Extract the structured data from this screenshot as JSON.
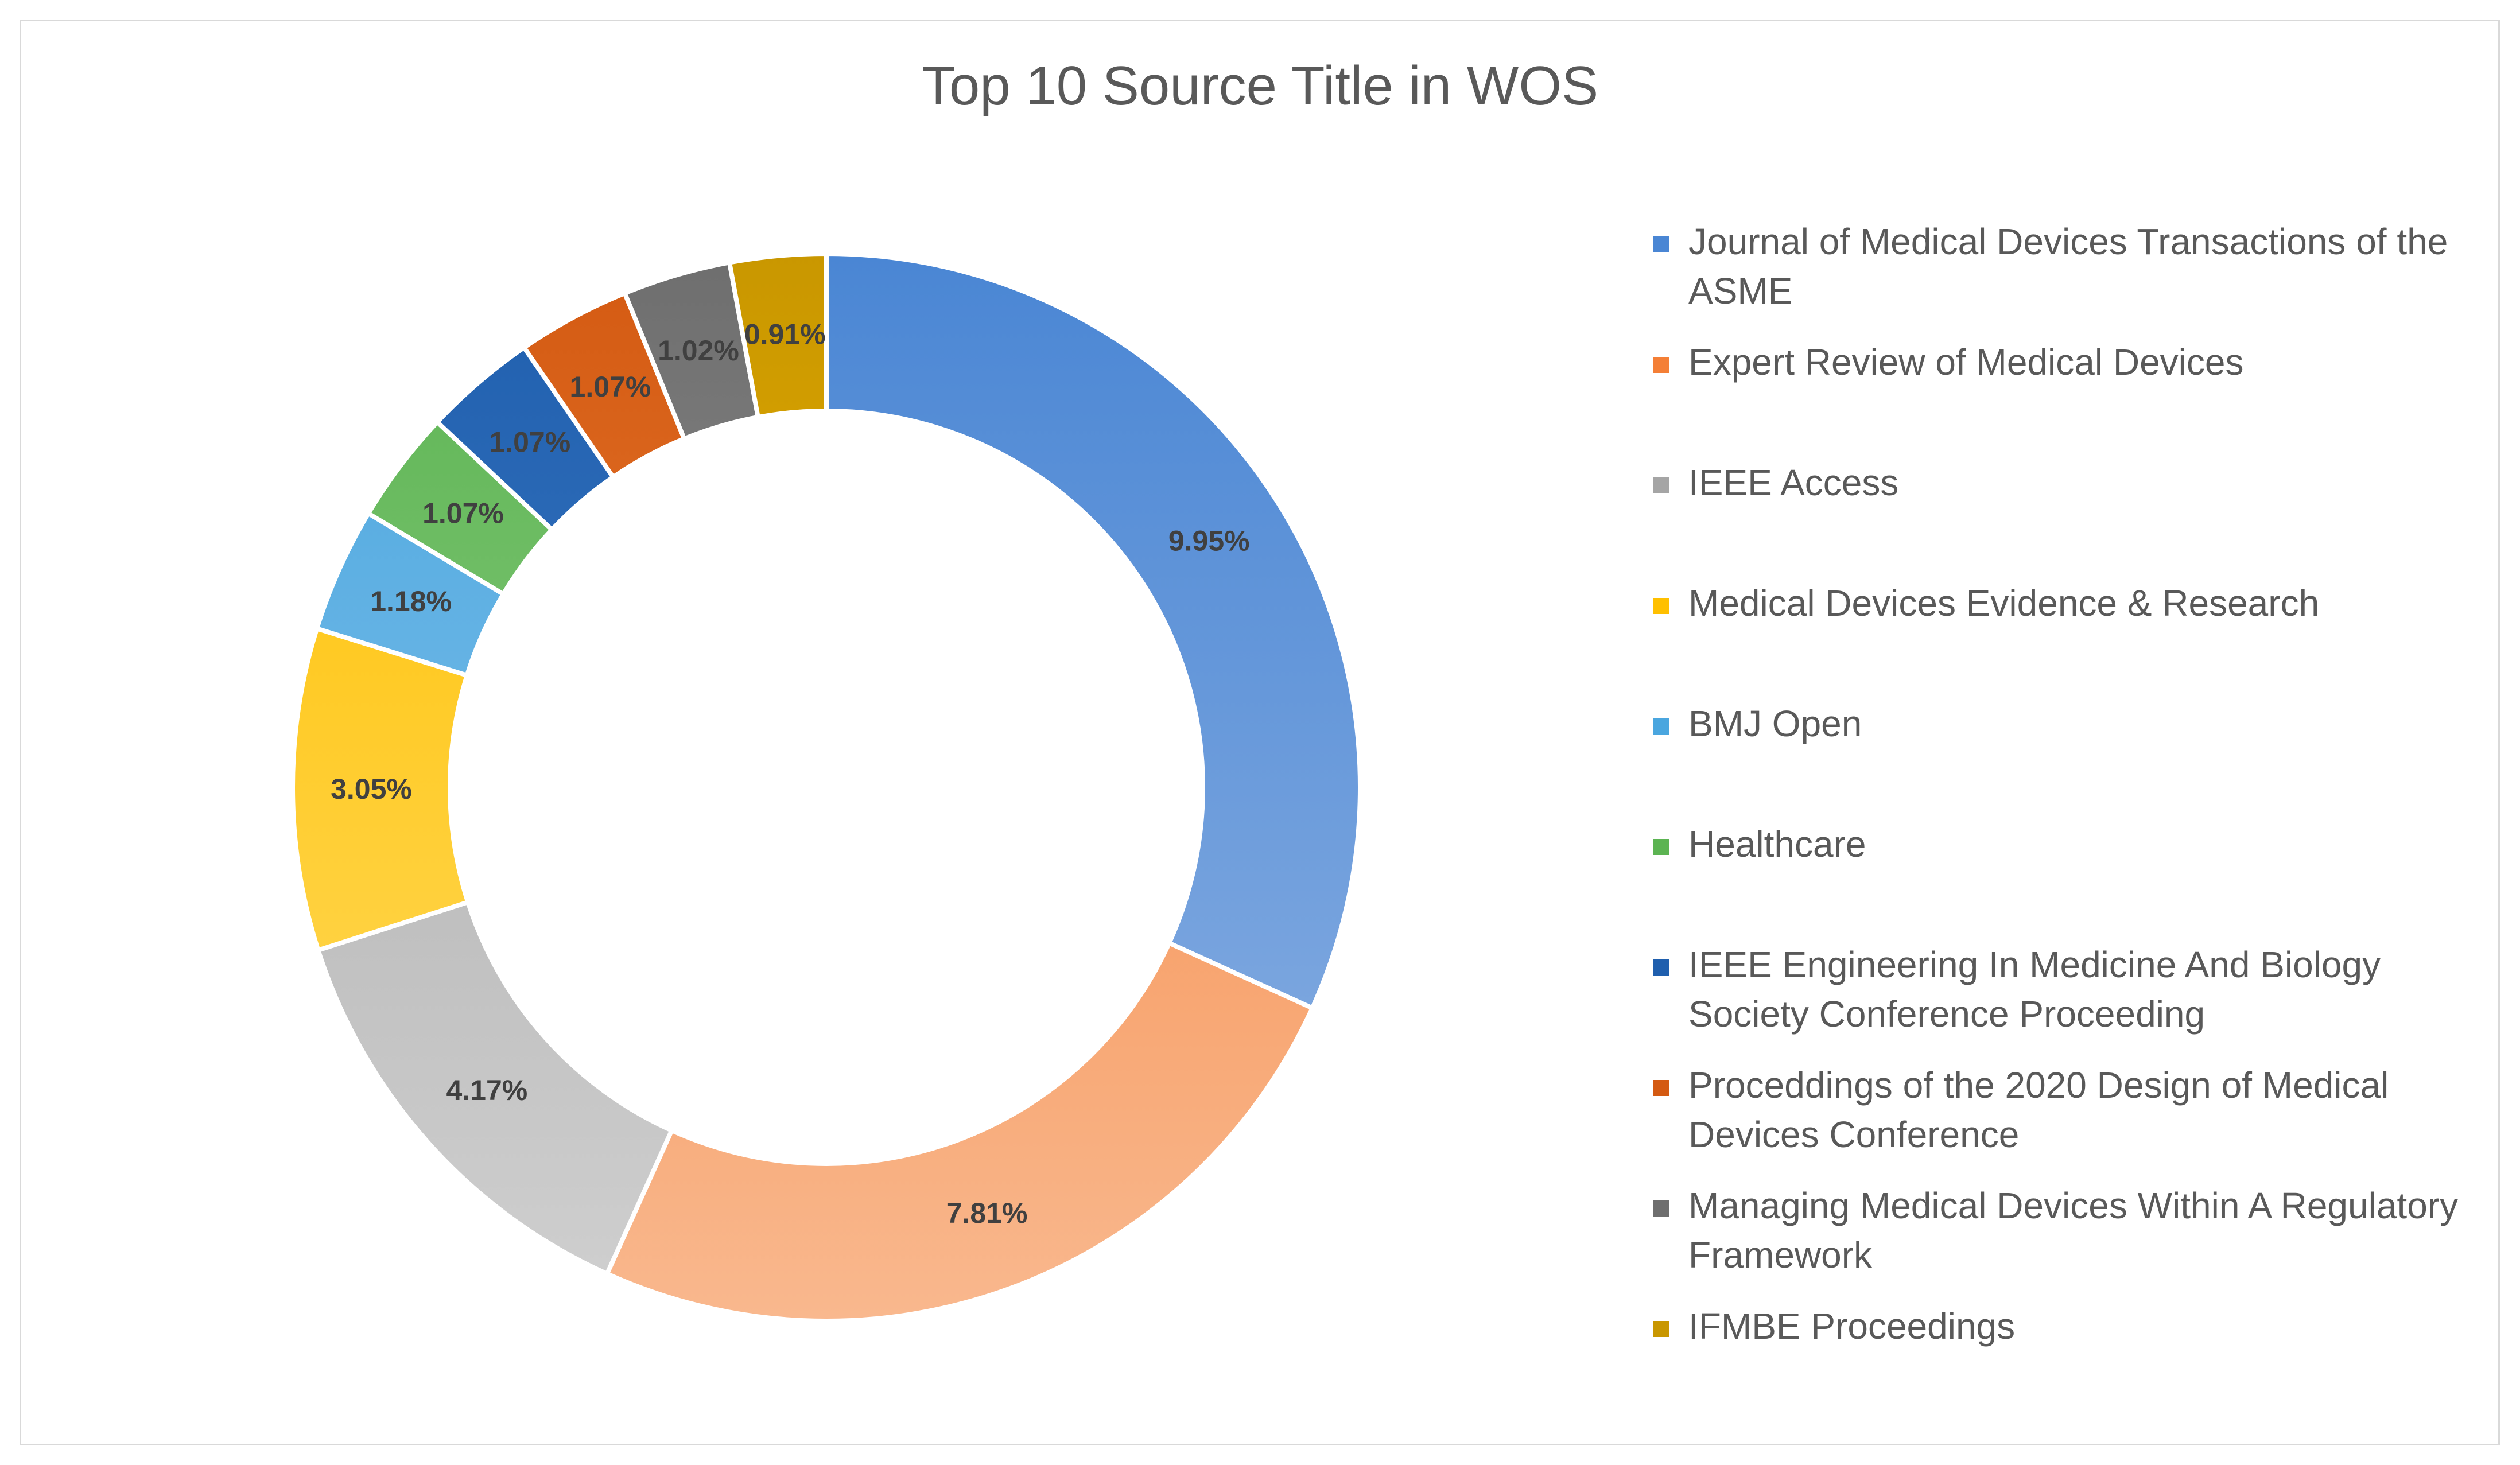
{
  "chart_data": {
    "type": "pie",
    "variant": "donut",
    "title": "Top 10 Source Title in WOS",
    "legend_position": "right",
    "slices": [
      {
        "name": "Journal of Medical Devices Transactions of the ASME",
        "value": 9.95,
        "label": "9.95%",
        "color": "#4a86d4",
        "color_light": "#8eb2e3"
      },
      {
        "name": "Expert Review of Medical Devices",
        "value": 7.81,
        "label": "7.81%",
        "color": "#f47f36",
        "color_light": "#f9b88e"
      },
      {
        "name": "IEEE Access",
        "value": 4.17,
        "label": "4.17%",
        "color": "#a5a5a5",
        "color_light": "#d0d0d0"
      },
      {
        "name": "Medical Devices Evidence & Research",
        "value": 3.05,
        "label": "3.05%",
        "color": "#ffc000",
        "color_light": "#ffdb62"
      },
      {
        "name": "BMJ Open",
        "value": 1.18,
        "label": "1.18%",
        "color": "#4aa6df",
        "color_light": "#8ec7ec"
      },
      {
        "name": "Healthcare",
        "value": 1.07,
        "label": "1.07%",
        "color": "#5cb452",
        "color_light": "#99d28f"
      },
      {
        "name": "IEEE Engineering In Medicine And Biology Society Conference Proceeding",
        "value": 1.07,
        "label": "1.07%",
        "color": "#1f5fae",
        "color_light": "#4a84cc"
      },
      {
        "name": "Proceddings of the 2020 Design of Medical Devices Conference",
        "value": 1.07,
        "label": "1.07%",
        "color": "#d45a12",
        "color_light": "#f08c44"
      },
      {
        "name": "Managing Medical Devices Within A Regulatory Framework",
        "value": 1.02,
        "label": "1.02%",
        "color": "#6e6e6e",
        "color_light": "#a5a5a5"
      },
      {
        "name": "IFMBE Proceedings",
        "value": 0.91,
        "label": "0.91%",
        "color": "#c99700",
        "color_light": "#ffc000"
      }
    ]
  },
  "legend": {
    "items": [
      {
        "lines": [
          "Journal of Medical Devices Transactions of the",
          "ASME"
        ]
      },
      {
        "lines": [
          "Expert Review of Medical Devices"
        ]
      },
      {
        "lines": [
          "IEEE Access"
        ]
      },
      {
        "lines": [
          "Medical Devices Evidence & Research"
        ]
      },
      {
        "lines": [
          "BMJ Open"
        ]
      },
      {
        "lines": [
          "Healthcare"
        ]
      },
      {
        "lines": [
          "IEEE Engineering In Medicine And Biology",
          "Society Conference Proceeding"
        ]
      },
      {
        "lines": [
          "Proceddings of the 2020 Design of Medical",
          "Devices Conference"
        ]
      },
      {
        "lines": [
          "Managing Medical Devices Within A Regulatory",
          "Framework"
        ]
      },
      {
        "lines": [
          "IFMBE Proceedings"
        ]
      }
    ]
  }
}
